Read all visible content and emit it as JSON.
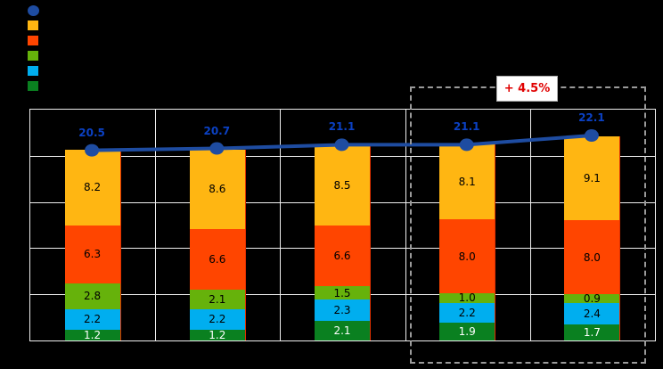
{
  "colors": {
    "background": "#000000",
    "grid": "#EFEFEF",
    "dashed_box": "#9A9A9A",
    "annotation_text": "#E00000",
    "annotation_box_bg": "#FFFFFF"
  },
  "legend": {
    "items": [
      {
        "name": "line-series-marker",
        "marker": "circle",
        "color": "#1E4CA1",
        "label": ""
      },
      {
        "name": "amber-series-marker",
        "marker": "square",
        "color": "#FFB612",
        "label": ""
      },
      {
        "name": "orange-series-marker",
        "marker": "square",
        "color": "#FF4500",
        "label": ""
      },
      {
        "name": "green-series-marker",
        "marker": "square",
        "color": "#66B20B",
        "label": ""
      },
      {
        "name": "cyan-series-marker",
        "marker": "square",
        "color": "#00AEEF",
        "label": ""
      },
      {
        "name": "dark-green-series-marker",
        "marker": "square",
        "color": "#0A8020",
        "label": ""
      }
    ]
  },
  "chart_data": {
    "type": "bar",
    "subtype": "stacked-bars-with-line",
    "categories": [
      "",
      "",
      "",
      "",
      ""
    ],
    "ylim": [
      0,
      25
    ],
    "grid": true,
    "legend_position": "top-left",
    "series": [
      {
        "name": "amber-top-segment",
        "color": "#FFB612",
        "label_color": "#000000",
        "values": [
          8.2,
          8.6,
          8.5,
          8.1,
          9.1
        ]
      },
      {
        "name": "orange-segment",
        "color": "#FF4500",
        "label_color": "#000000",
        "values": [
          6.3,
          6.6,
          6.6,
          8.0,
          8.0
        ]
      },
      {
        "name": "green-segment",
        "color": "#66B20B",
        "label_color": "#000000",
        "values": [
          2.8,
          2.1,
          1.5,
          1.0,
          0.9
        ]
      },
      {
        "name": "cyan-segment",
        "color": "#00AEEF",
        "label_color": "#000000",
        "values": [
          2.2,
          2.2,
          2.3,
          2.2,
          2.4
        ]
      },
      {
        "name": "dark-green-bottom-segment",
        "color": "#0A8020",
        "label_color": "#FFFFFF",
        "values": [
          1.2,
          1.2,
          2.1,
          1.9,
          1.7
        ]
      }
    ],
    "line_series": {
      "name": "total-line",
      "color": "#1E4CA1",
      "label_color": "#0B41C4",
      "values": [
        20.5,
        20.7,
        21.1,
        21.1,
        22.1
      ]
    },
    "annotation": {
      "text": "+ 4.5%",
      "applies_to": "last-two-bars"
    }
  }
}
